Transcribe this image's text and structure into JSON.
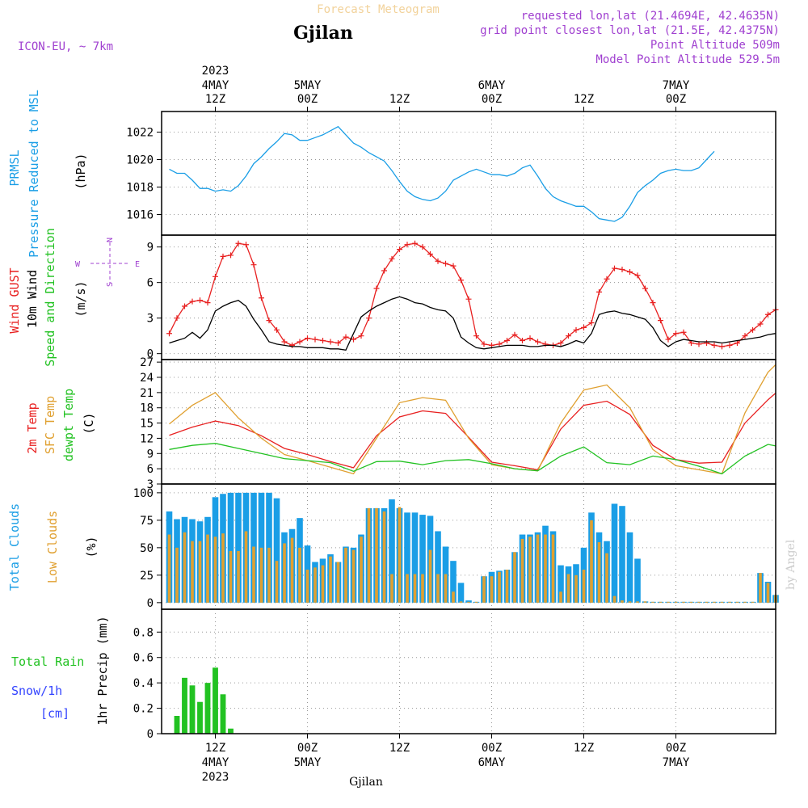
{
  "header": {
    "product": "Forecast Meteogram",
    "location": "Gjilan",
    "model": "ICON-EU, ~ 7km",
    "requested": "requested lon,lat (21.4694E, 42.4635N)",
    "grid_point": "grid point closest lon,lat (21.5E, 42.4375N)",
    "point_altitude": "Point Altitude 509m",
    "model_altitude": "Model Point Altitude 529.5m",
    "watermark": "by Angel",
    "footer_location": "Gjilan",
    "colors": {
      "product": "#f2d29a",
      "purple": "#a040d0",
      "cyan": "#1a9ee6",
      "red": "#e82020",
      "green": "#22c222",
      "orange": "#e0a030",
      "blue": "#3344ff"
    }
  },
  "top_axis": {
    "year": "2023",
    "labels": [
      {
        "hour": 12,
        "day": "4MAY",
        "time": "12Z"
      },
      {
        "hour": 24,
        "day": "5MAY",
        "time": "00Z"
      },
      {
        "hour": 36,
        "day": "",
        "time": "12Z"
      },
      {
        "hour": 48,
        "day": "6MAY",
        "time": "00Z"
      },
      {
        "hour": 60,
        "day": "",
        "time": "12Z"
      },
      {
        "hour": 72,
        "day": "7MAY",
        "time": "00Z"
      }
    ]
  },
  "bottom_axis": {
    "year": "2023",
    "labels": [
      {
        "hour": 12,
        "time": "12Z",
        "day": "4MAY"
      },
      {
        "hour": 24,
        "time": "00Z",
        "day": "5MAY"
      },
      {
        "hour": 36,
        "time": "12Z",
        "day": ""
      },
      {
        "hour": 48,
        "time": "00Z",
        "day": "6MAY"
      },
      {
        "hour": 60,
        "time": "12Z",
        "day": ""
      },
      {
        "hour": 72,
        "time": "00Z",
        "day": "7MAY"
      }
    ]
  },
  "chart_data": [
    {
      "type": "line",
      "panel": "pressure",
      "ylabel": [
        "PRMSL",
        "Pressure Reduced to MSL",
        "(hPa)"
      ],
      "ylim": [
        1014.5,
        1023.5
      ],
      "yticks": [
        1016,
        1018,
        1020,
        1022
      ],
      "grid": true,
      "x_hours": [
        6,
        7,
        8,
        9,
        10,
        11,
        12,
        13,
        14,
        15,
        16,
        17,
        18,
        19,
        20,
        21,
        22,
        23,
        24,
        25,
        26,
        27,
        28,
        29,
        30,
        31,
        32,
        33,
        34,
        35,
        36,
        37,
        38,
        39,
        40,
        41,
        42,
        43,
        44,
        45,
        46,
        47,
        48,
        49,
        50,
        51,
        52,
        53,
        54,
        55,
        56,
        57,
        58,
        59,
        60,
        61,
        62,
        63,
        64,
        65,
        66,
        67,
        68,
        69,
        70,
        71,
        72,
        73,
        74,
        75,
        76,
        77
      ],
      "series": [
        {
          "name": "PRMSL",
          "color": "#1a9ee6",
          "values": [
            1019.3,
            1019.0,
            1019.0,
            1018.5,
            1017.9,
            1017.9,
            1017.7,
            1017.8,
            1017.7,
            1018.1,
            1018.8,
            1019.7,
            1020.2,
            1020.8,
            1021.3,
            1021.9,
            1021.8,
            1021.4,
            1021.4,
            1021.6,
            1021.8,
            1022.1,
            1022.4,
            1021.8,
            1021.2,
            1020.9,
            1020.5,
            1020.2,
            1019.9,
            1019.2,
            1018.4,
            1017.7,
            1017.3,
            1017.1,
            1017.0,
            1017.2,
            1017.7,
            1018.5,
            1018.8,
            1019.1,
            1019.3,
            1019.1,
            1018.9,
            1018.9,
            1018.8,
            1019.0,
            1019.4,
            1019.6,
            1018.8,
            1017.9,
            1017.3,
            1017.0,
            1016.8,
            1016.6,
            1016.6,
            1016.2,
            1015.7,
            1015.6,
            1015.5,
            1015.8,
            1016.6,
            1017.6,
            1018.1,
            1018.5,
            1019.0,
            1019.2,
            1019.3,
            1019.2,
            1019.2,
            1019.4,
            1020.0,
            1020.6
          ]
        }
      ]
    },
    {
      "type": "line",
      "panel": "wind",
      "ylabel": [
        "Wind GUST",
        "10m Wind",
        "Speed and Direction",
        "(m/s)"
      ],
      "compass": [
        "N",
        "W",
        "E",
        "S"
      ],
      "ylim": [
        -0.5,
        10
      ],
      "yticks": [
        0,
        3,
        6,
        9
      ],
      "grid": true,
      "x_hours": [
        6,
        7,
        8,
        9,
        10,
        11,
        12,
        13,
        14,
        15,
        16,
        17,
        18,
        19,
        20,
        21,
        22,
        23,
        24,
        25,
        26,
        27,
        28,
        29,
        30,
        31,
        32,
        33,
        34,
        35,
        36,
        37,
        38,
        39,
        40,
        41,
        42,
        43,
        44,
        45,
        46,
        47,
        48,
        49,
        50,
        51,
        52,
        53,
        54,
        55,
        56,
        57,
        58,
        59,
        60,
        61,
        62,
        63,
        64,
        65,
        66,
        67,
        68,
        69,
        70,
        71,
        72,
        73,
        74,
        75,
        76,
        77,
        78,
        79,
        80,
        81,
        82,
        83,
        84,
        85
      ],
      "series": [
        {
          "name": "Wind GUST",
          "color": "#e82020",
          "values": [
            1.7,
            3.0,
            4.0,
            4.4,
            4.5,
            4.3,
            6.5,
            8.2,
            8.3,
            9.3,
            9.2,
            7.5,
            4.7,
            2.8,
            2.0,
            1.0,
            0.7,
            1.0,
            1.3,
            1.2,
            1.1,
            1.0,
            0.9,
            1.4,
            1.2,
            1.5,
            3.0,
            5.5,
            7.0,
            8.0,
            8.8,
            9.2,
            9.3,
            9.0,
            8.4,
            7.8,
            7.6,
            7.4,
            6.2,
            4.6,
            1.5,
            0.8,
            0.7,
            0.8,
            1.1,
            1.6,
            1.1,
            1.3,
            1.0,
            0.8,
            0.7,
            0.9,
            1.5,
            2.0,
            2.2,
            2.6,
            5.2,
            6.3,
            7.2,
            7.1,
            6.9,
            6.6,
            5.5,
            4.3,
            2.8,
            1.2,
            1.7,
            1.8,
            0.9,
            0.8,
            0.9,
            0.7,
            0.6,
            0.7,
            0.9,
            1.5,
            2.0,
            2.5,
            3.3,
            3.7
          ]
        },
        {
          "name": "10m Wind",
          "color": "#000000",
          "values": [
            0.9,
            1.1,
            1.3,
            1.8,
            1.3,
            2.0,
            3.6,
            4.0,
            4.3,
            4.5,
            4.0,
            2.9,
            2.0,
            1.0,
            0.8,
            0.7,
            0.6,
            0.6,
            0.5,
            0.5,
            0.5,
            0.4,
            0.4,
            0.3,
            1.7,
            3.1,
            3.6,
            4.0,
            4.3,
            4.6,
            4.8,
            4.6,
            4.3,
            4.2,
            3.9,
            3.7,
            3.6,
            3.0,
            1.4,
            0.9,
            0.5,
            0.4,
            0.5,
            0.6,
            0.7,
            0.7,
            0.7,
            0.6,
            0.6,
            0.7,
            0.7,
            0.6,
            0.8,
            1.1,
            0.9,
            1.7,
            3.3,
            3.5,
            3.6,
            3.4,
            3.3,
            3.1,
            2.9,
            2.2,
            1.1,
            0.6,
            1.0,
            1.2,
            1.1,
            1.0,
            1.0,
            1.0,
            0.9,
            1.0,
            1.1,
            1.2,
            1.3,
            1.4,
            1.6,
            1.7
          ]
        }
      ]
    },
    {
      "type": "line",
      "panel": "temperature",
      "ylabel": [
        "2m Temp",
        "SFC Temp",
        "dewpt Temp",
        "(C)"
      ],
      "ylim": [
        3,
        27.5
      ],
      "yticks": [
        3,
        6,
        9,
        12,
        15,
        18,
        21,
        24,
        27
      ],
      "grid": true,
      "x_hours": [
        6,
        9,
        12,
        15,
        18,
        21,
        24,
        27,
        30,
        33,
        36,
        39,
        42,
        45,
        48,
        51,
        54,
        57,
        60,
        63,
        66,
        69,
        72,
        75,
        78,
        81,
        84,
        85
      ],
      "series": [
        {
          "name": "2m Temp",
          "color": "#e82020",
          "values": [
            12.6,
            14.2,
            15.4,
            14.5,
            12.5,
            10.0,
            8.8,
            7.4,
            6.2,
            12.5,
            16.2,
            17.4,
            16.9,
            12.2,
            7.3,
            6.6,
            5.8,
            13.8,
            18.5,
            19.3,
            16.7,
            10.6,
            7.8,
            7.1,
            7.3,
            15.0,
            19.6,
            20.9
          ]
        },
        {
          "name": "SFC Temp",
          "color": "#e0a030",
          "values": [
            14.8,
            18.5,
            21.0,
            16.0,
            12.0,
            8.8,
            7.6,
            6.3,
            5.0,
            12.0,
            19.0,
            20.0,
            19.5,
            12.0,
            6.8,
            6.0,
            5.6,
            15.0,
            21.5,
            22.5,
            18.0,
            9.8,
            6.6,
            5.8,
            5.0,
            17.0,
            25.0,
            26.5
          ]
        },
        {
          "name": "dewpt Temp",
          "color": "#22c222",
          "values": [
            9.8,
            10.6,
            11.0,
            10.0,
            9.0,
            8.0,
            7.6,
            7.2,
            5.5,
            7.4,
            7.5,
            6.8,
            7.6,
            7.8,
            7.0,
            6.0,
            5.6,
            8.5,
            10.3,
            7.2,
            6.8,
            8.5,
            7.8,
            6.5,
            5.0,
            8.5,
            10.8,
            10.5
          ]
        }
      ]
    },
    {
      "type": "bar",
      "panel": "clouds",
      "ylabel": [
        "Total Clouds",
        "Low Clouds",
        "(%)"
      ],
      "ylim": [
        -6,
        108
      ],
      "yticks": [
        0,
        25,
        50,
        75,
        100
      ],
      "grid": true,
      "x_hours": [
        6,
        7,
        8,
        9,
        10,
        11,
        12,
        13,
        14,
        15,
        16,
        17,
        18,
        19,
        20,
        21,
        22,
        23,
        24,
        25,
        26,
        27,
        28,
        29,
        30,
        31,
        32,
        33,
        34,
        35,
        36,
        37,
        38,
        39,
        40,
        41,
        42,
        43,
        44,
        45,
        46,
        47,
        48,
        49,
        50,
        51,
        52,
        53,
        54,
        55,
        56,
        57,
        58,
        59,
        60,
        61,
        62,
        63,
        64,
        65,
        66,
        67,
        68,
        69,
        70,
        71,
        72,
        73,
        74,
        75,
        76,
        77,
        78,
        79,
        80,
        81,
        82,
        83,
        84,
        85
      ],
      "series": [
        {
          "name": "Total Clouds",
          "color": "#1a9ee6",
          "values": [
            83,
            76,
            78,
            76,
            74,
            78,
            96,
            99,
            100,
            100,
            100,
            100,
            100,
            100,
            95,
            64,
            67,
            77,
            52,
            37,
            40,
            44,
            37,
            51,
            50,
            62,
            86,
            86,
            86,
            94,
            86,
            82,
            82,
            80,
            79,
            65,
            51,
            38,
            18,
            2,
            0,
            24,
            28,
            29,
            30,
            46,
            62,
            62,
            64,
            70,
            65,
            34,
            33,
            35,
            50,
            82,
            64,
            56,
            90,
            88,
            64,
            40,
            1,
            0,
            0,
            0,
            0,
            0,
            0,
            0,
            0,
            0,
            0,
            0,
            0,
            0,
            0,
            27,
            19,
            7
          ]
        },
        {
          "name": "Low Clouds",
          "color": "#e0a030",
          "values": [
            62,
            50,
            64,
            56,
            56,
            62,
            60,
            63,
            47,
            47,
            65,
            51,
            50,
            50,
            38,
            54,
            59,
            50,
            30,
            32,
            34,
            42,
            37,
            50,
            48,
            60,
            86,
            86,
            83,
            26,
            87,
            26,
            26,
            26,
            48,
            26,
            26,
            10,
            1,
            0,
            0,
            24,
            24,
            28,
            30,
            46,
            58,
            60,
            62,
            62,
            62,
            10,
            26,
            25,
            30,
            75,
            55,
            45,
            6,
            2,
            1,
            1,
            1,
            0,
            0,
            0,
            0,
            0,
            0,
            0,
            0,
            0,
            0,
            0,
            0,
            0,
            0,
            27,
            18,
            7
          ]
        }
      ]
    },
    {
      "type": "bar",
      "panel": "precipitation",
      "ylabel": [
        "1hr Precip (mm)"
      ],
      "side_labels": [
        "Total Rain",
        "Snow/1h",
        "[cm]"
      ],
      "ylim": [
        0,
        0.98
      ],
      "yticks": [
        0,
        0.2,
        0.4,
        0.6,
        0.8
      ],
      "ytick_labels": [
        "0",
        "0.2",
        "0.4",
        "0.6",
        "0.8"
      ],
      "grid": true,
      "x_hours": [
        7,
        8,
        9,
        10,
        11,
        12,
        13,
        14
      ],
      "series": [
        {
          "name": "Total Rain",
          "color": "#22c222",
          "values": [
            0.14,
            0.44,
            0.38,
            0.25,
            0.4,
            0.52,
            0.31,
            0.04
          ]
        }
      ]
    }
  ]
}
